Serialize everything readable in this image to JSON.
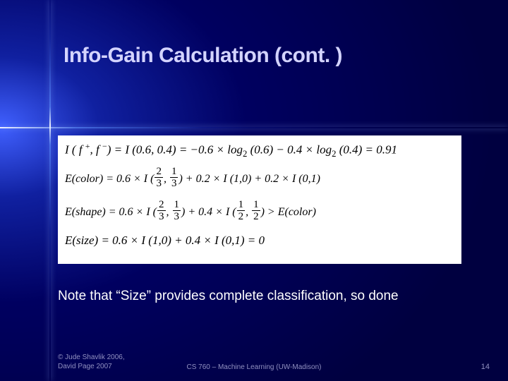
{
  "slide": {
    "title": "Info-Gain Calculation (cont. )",
    "note": "Note that “Size” provides complete classification, so done",
    "background_colors": {
      "center": "#4060ff",
      "mid": "#1020a0",
      "outer": "#000060",
      "edge": "#000040"
    },
    "title_color": "#d4d4ff",
    "note_color": "#ffffff",
    "footer_color": "#9090c0"
  },
  "formula_box": {
    "type": "math-block",
    "background": "#ffffff",
    "text_color": "#000000",
    "font_family": "Times New Roman",
    "lines": [
      {
        "kind": "entropy_prior",
        "lhs": "I(f+, f−)",
        "expr": "I(0.6, 0.4) = −0.6 × log2(0.6) − 0.4 × log2(0.4)",
        "result": 0.91
      },
      {
        "kind": "expected_entropy",
        "attribute": "color",
        "terms": [
          {
            "weight": 0.6,
            "I_args": [
              "2/3",
              "1/3"
            ]
          },
          {
            "weight": 0.2,
            "I_args": [
              1,
              0
            ]
          },
          {
            "weight": 0.2,
            "I_args": [
              0,
              1
            ]
          }
        ]
      },
      {
        "kind": "expected_entropy_comparison",
        "attribute": "shape",
        "terms": [
          {
            "weight": 0.6,
            "I_args": [
              "2/3",
              "1/3"
            ]
          },
          {
            "weight": 0.4,
            "I_args": [
              "1/2",
              "1/2"
            ]
          }
        ],
        "comparison": "> E(color)"
      },
      {
        "kind": "expected_entropy",
        "attribute": "size",
        "terms": [
          {
            "weight": 0.6,
            "I_args": [
              1,
              0
            ]
          },
          {
            "weight": 0.4,
            "I_args": [
              0,
              1
            ]
          }
        ],
        "result": 0
      }
    ]
  },
  "footer": {
    "copyright_line1": "© Jude Shavlik 2006,",
    "copyright_line2": "   David Page 2007",
    "course": "CS 760 – Machine Learning (UW-Madison)",
    "page_number": "14"
  }
}
